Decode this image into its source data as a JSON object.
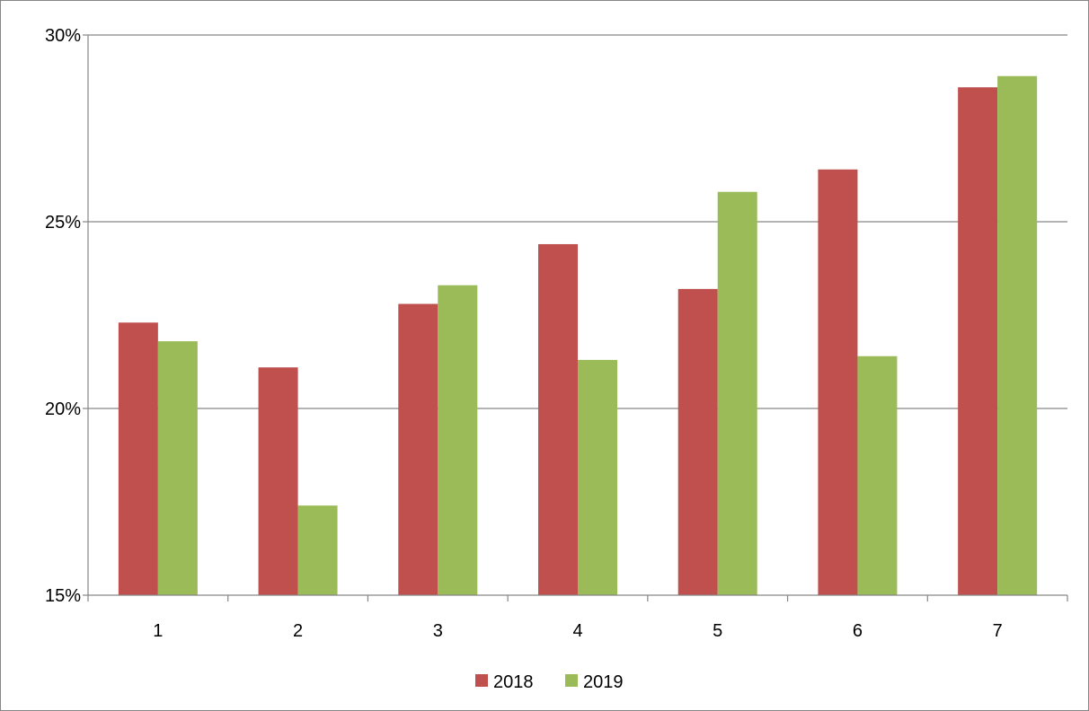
{
  "chart_data": {
    "type": "bar",
    "title": "",
    "xlabel": "",
    "ylabel": "",
    "categories": [
      "1",
      "2",
      "3",
      "4",
      "5",
      "6",
      "7"
    ],
    "series": [
      {
        "name": "2018",
        "color": "#C0504D",
        "values": [
          22.3,
          21.1,
          22.8,
          24.4,
          23.2,
          26.4,
          28.6
        ]
      },
      {
        "name": "2019",
        "color": "#9BBB59",
        "values": [
          21.8,
          17.4,
          23.3,
          21.3,
          25.8,
          21.4,
          28.9
        ]
      }
    ],
    "ylim": [
      15,
      30
    ],
    "yticks": [
      15,
      20,
      25,
      30
    ],
    "ytick_labels": [
      "15%",
      "20%",
      "25%",
      "30%"
    ],
    "grid": true,
    "legend": "bottom"
  }
}
